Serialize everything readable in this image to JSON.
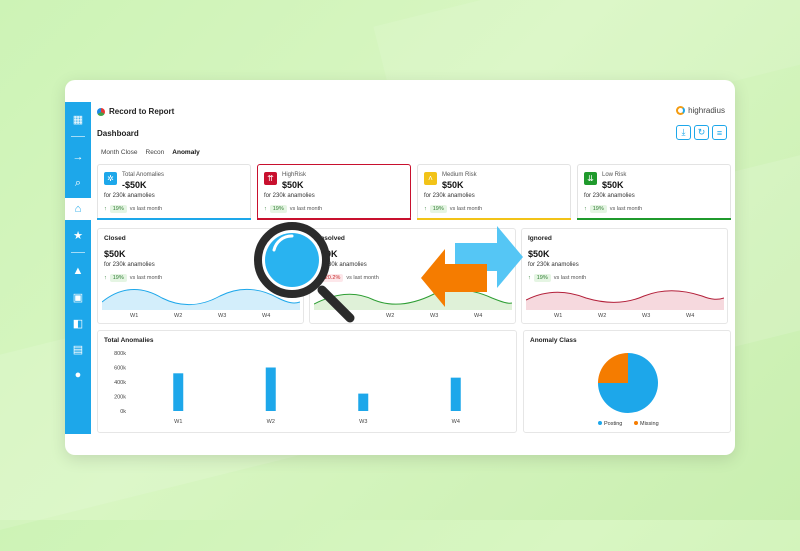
{
  "app": {
    "title": "Record to Report",
    "brand": "highradius",
    "page_title": "Dashboard"
  },
  "toolbar": {
    "icons": [
      "download-icon",
      "refresh-icon",
      "filter-icon"
    ]
  },
  "tabs": [
    {
      "label": "Month Close",
      "active": false
    },
    {
      "label": "Recon",
      "active": false
    },
    {
      "label": "Anomaly",
      "active": true
    }
  ],
  "kpis": [
    {
      "label": "Total Anomalies",
      "value": "-$50K",
      "sub": "for 230k anamolies",
      "pct": "19%",
      "vs": "vs last month",
      "color": "#1da7ea"
    },
    {
      "label": "HighRisk",
      "value": "$50K",
      "sub": "for 230k anamolies",
      "pct": "19%",
      "vs": "vs last month",
      "color": "#c8102e"
    },
    {
      "label": "Medium Risk",
      "value": "$50K",
      "sub": "for 230k anamolies",
      "pct": "19%",
      "vs": "vs last month",
      "color": "#f2c318"
    },
    {
      "label": "Low Risk",
      "value": "$50K",
      "sub": "for 230k anamolies",
      "pct": "19%",
      "vs": "vs last month",
      "color": "#1f9a2c"
    }
  ],
  "status_cards": [
    {
      "title": "Closed",
      "value": "$50K",
      "sub": "for 230k anamolies",
      "pct": "19%",
      "vs": "vs last month",
      "color": "#1da7ea",
      "weeks": [
        "W1",
        "W2",
        "W3",
        "W4"
      ]
    },
    {
      "title": "Resolved",
      "value": "$50K",
      "sub": "for 230k anamolies",
      "pct": "20.2%",
      "vs": "vs last month",
      "color": "#2e9e34",
      "weeks": [
        "W1",
        "W2",
        "W3",
        "W4"
      ]
    },
    {
      "title": "Ignored",
      "value": "$50K",
      "sub": "for 230k anamolies",
      "pct": "19%",
      "vs": "vs last month",
      "color": "#b3203a",
      "weeks": [
        "W1",
        "W2",
        "W3",
        "W4"
      ]
    }
  ],
  "total_anomalies": {
    "title": "Total Anomalies"
  },
  "anomaly_class": {
    "title": "Anomaly Class"
  },
  "chart_data": [
    {
      "type": "bar",
      "title": "Total Anomalies",
      "categories": [
        "W1",
        "W2",
        "W3",
        "W4"
      ],
      "values": [
        520000,
        600000,
        240000,
        460000
      ],
      "y_ticks": [
        "800k",
        "600k",
        "400k",
        "200k",
        "0k"
      ],
      "ylim": [
        0,
        800000
      ],
      "color": "#1da7ea"
    },
    {
      "type": "pie",
      "title": "Anomaly Class",
      "slices": [
        {
          "label": "Posting",
          "value": 75,
          "color": "#1da7ea"
        },
        {
          "label": "Missing",
          "value": 25,
          "color": "#f57c00"
        }
      ]
    }
  ]
}
